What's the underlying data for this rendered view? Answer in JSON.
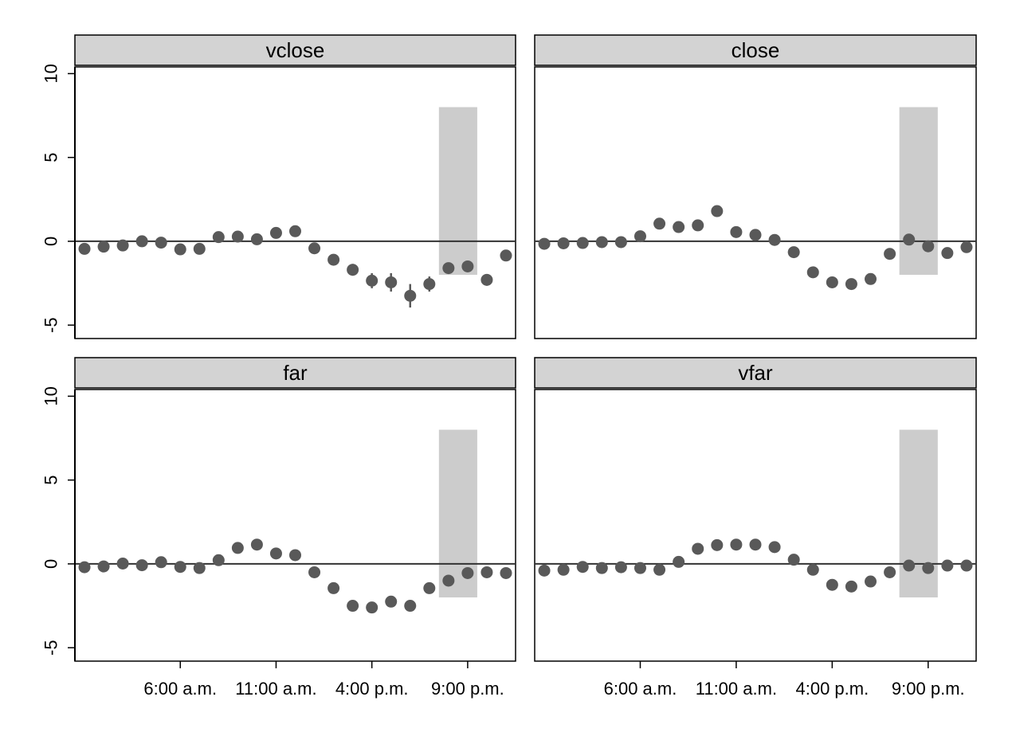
{
  "chart_data": {
    "type": "scatter",
    "x_hours": [
      1,
      2,
      3,
      4,
      5,
      6,
      7,
      8,
      9,
      10,
      11,
      12,
      13,
      14,
      15,
      16,
      17,
      18,
      19,
      20,
      21,
      22,
      23
    ],
    "x_tick_values": [
      6,
      11,
      16,
      21
    ],
    "x_tick_labels": [
      "6:00 a.m.",
      "11:00 a.m.",
      "4:00 p.m.",
      "9:00 p.m."
    ],
    "y_ticks": [
      -5,
      0,
      5,
      10
    ],
    "y_tick_labels": [
      "-5",
      "0",
      "5",
      "10"
    ],
    "ylim": [
      -5.8,
      10.4
    ],
    "xlim": [
      0.5,
      23.5
    ],
    "reference_line": 0,
    "shaded_band": {
      "x_start": 19.5,
      "x_end": 21.5,
      "y_start": -2,
      "y_end": 8
    },
    "colors": {
      "point": "#595959",
      "band": "#cccccc",
      "strip": "#d3d3d3",
      "line": "#333333"
    },
    "panels": [
      {
        "title": "vclose",
        "values": [
          -0.45,
          -0.32,
          -0.25,
          0.0,
          -0.08,
          -0.48,
          -0.45,
          0.25,
          0.28,
          0.12,
          0.5,
          0.6,
          -0.42,
          -1.1,
          -1.7,
          -2.35,
          -2.45,
          -3.25,
          -2.55,
          -1.6,
          -1.5,
          -2.3,
          -0.85
        ],
        "errors": [
          0.12,
          0.12,
          0.12,
          0.12,
          0.12,
          0.15,
          0.15,
          0.15,
          0.15,
          0.15,
          0.2,
          0.2,
          0.2,
          0.25,
          0.35,
          0.45,
          0.55,
          0.7,
          0.45,
          0.3,
          0.2,
          0.35,
          0.25
        ]
      },
      {
        "title": "close",
        "values": [
          -0.15,
          -0.12,
          -0.1,
          -0.05,
          -0.05,
          0.3,
          1.05,
          0.85,
          0.95,
          1.8,
          0.55,
          0.38,
          0.08,
          -0.65,
          -1.85,
          -2.45,
          -2.55,
          -2.25,
          -0.75,
          0.1,
          -0.3,
          -0.7,
          -0.35
        ]
      },
      {
        "title": "far",
        "values": [
          -0.2,
          -0.15,
          0.02,
          -0.08,
          0.1,
          -0.18,
          -0.25,
          0.22,
          0.95,
          1.15,
          0.62,
          0.52,
          -0.5,
          -1.45,
          -2.5,
          -2.6,
          -2.25,
          -2.5,
          -1.45,
          -1.0,
          -0.55,
          -0.5,
          -0.55
        ]
      },
      {
        "title": "vfar",
        "values": [
          -0.4,
          -0.35,
          -0.18,
          -0.25,
          -0.2,
          -0.25,
          -0.35,
          0.12,
          0.9,
          1.12,
          1.15,
          1.15,
          1.0,
          0.25,
          -0.35,
          -1.25,
          -1.35,
          -1.05,
          -0.5,
          -0.1,
          -0.25,
          -0.1,
          -0.1
        ]
      }
    ]
  }
}
